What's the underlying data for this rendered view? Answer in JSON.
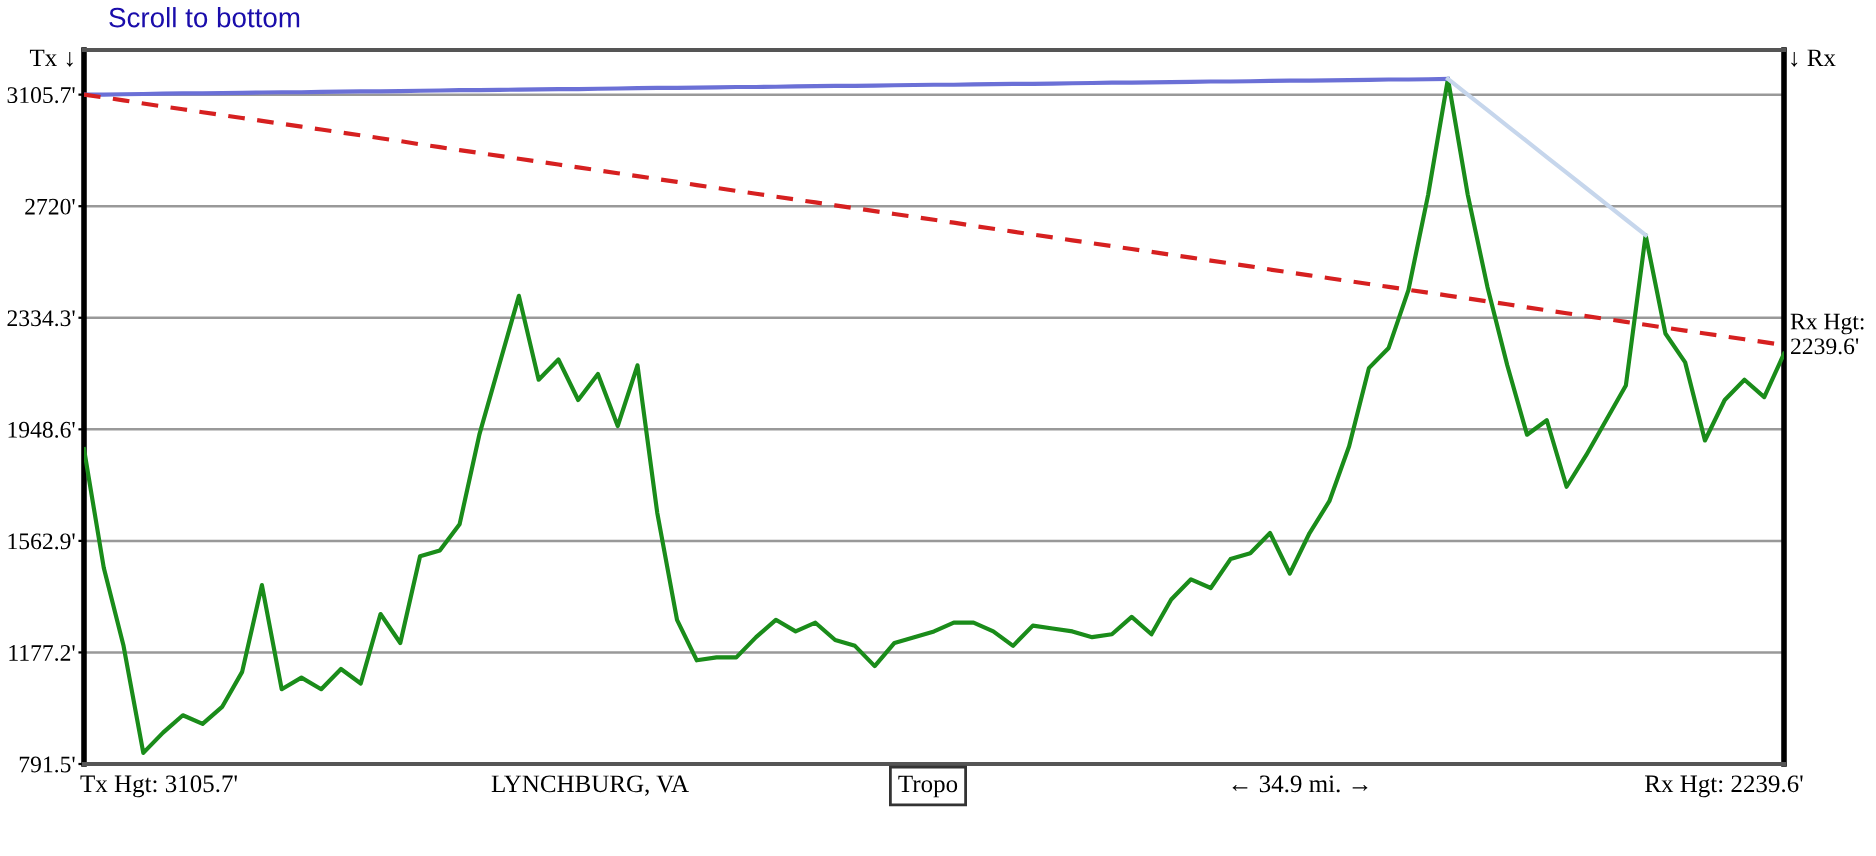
{
  "chart_data": {
    "type": "line",
    "categories": [
      null,
      null,
      null,
      null,
      null,
      null,
      null,
      null,
      null,
      null,
      null,
      null,
      null,
      null,
      null,
      null,
      null,
      null,
      null,
      null,
      null,
      null,
      null,
      null,
      null,
      null,
      null,
      null,
      null,
      null,
      null,
      null,
      null,
      null,
      null,
      null,
      null,
      null,
      null,
      null,
      null,
      null,
      null,
      null,
      null,
      null,
      null,
      null,
      null,
      null,
      null,
      null,
      null,
      null,
      null,
      null,
      null,
      null,
      null,
      null,
      null,
      null,
      null,
      null,
      null,
      null,
      null,
      null,
      null,
      null,
      null,
      null,
      null,
      null,
      null,
      null,
      null,
      null,
      null,
      null,
      null,
      null,
      null,
      null,
      null,
      null,
      null
    ],
    "series": [
      {
        "color": "#1a8c1a",
        "values": [
          1880,
          1470,
          1200,
          830,
          900,
          960,
          930,
          990,
          1110,
          1410,
          1050,
          1090,
          1050,
          1120,
          1070,
          1310,
          1210,
          1510,
          1530,
          1620,
          1930,
          2170,
          2410,
          2120,
          2190,
          2050,
          2140,
          1960,
          2170,
          1660,
          1290,
          1150,
          1160,
          1160,
          1230,
          1290,
          1250,
          1280,
          1220,
          1200,
          1130,
          1210,
          1230,
          1250,
          1280,
          1280,
          1250,
          1200,
          1270,
          1260,
          1250,
          1230,
          1240,
          1300,
          1240,
          1360,
          1430,
          1400,
          1500,
          1520,
          1590,
          1450,
          1590,
          1700,
          1890,
          2160,
          2230,
          2430,
          2760,
          3160,
          2760,
          2440,
          2170,
          1930,
          1980,
          1750,
          1860,
          1980,
          2100,
          2620,
          2280,
          2180,
          1910,
          2050,
          2120,
          2060,
          2210
        ]
      },
      {
        "color": "#6b70d6",
        "values": [
          3105.7,
          3106,
          3107,
          3108,
          3109,
          3110,
          3110,
          3111,
          3112,
          3113,
          3114,
          3114,
          3115,
          3116,
          3117,
          3117,
          3118,
          3119,
          3120,
          3121,
          3121,
          3122,
          3123,
          3124,
          3125,
          3125,
          3126,
          3127,
          3128,
          3129,
          3129,
          3130,
          3131,
          3132,
          3132,
          3133,
          3134,
          3135,
          3136,
          3136,
          3137,
          3138,
          3139,
          3140,
          3140,
          3141,
          3142,
          3143,
          3143,
          3144,
          3145,
          3146,
          3147,
          3147,
          3148,
          3149,
          3150,
          3151,
          3151,
          3152,
          3153,
          3154,
          3154,
          3155,
          3156,
          3157,
          3158,
          3158,
          3159,
          3160,
          null,
          null,
          null,
          null,
          null,
          null,
          null,
          null,
          null,
          null,
          null,
          null,
          null,
          null,
          null,
          null,
          null
        ]
      },
      {
        "color": "#c6d6ec",
        "values": [
          null,
          null,
          null,
          null,
          null,
          null,
          null,
          null,
          null,
          null,
          null,
          null,
          null,
          null,
          null,
          null,
          null,
          null,
          null,
          null,
          null,
          null,
          null,
          null,
          null,
          null,
          null,
          null,
          null,
          null,
          null,
          null,
          null,
          null,
          null,
          null,
          null,
          null,
          null,
          null,
          null,
          null,
          null,
          null,
          null,
          null,
          null,
          null,
          null,
          null,
          null,
          null,
          null,
          null,
          null,
          null,
          null,
          null,
          null,
          null,
          null,
          null,
          null,
          null,
          null,
          null,
          null,
          null,
          null,
          3160,
          3106,
          3052,
          2998,
          2944,
          2890,
          2836,
          2782,
          2728,
          2674,
          2620,
          null,
          null,
          null,
          null,
          null,
          null,
          null
        ]
      },
      {
        "color": "#d62020",
        "line_style": "dashed",
        "values": [
          3105.7,
          3096,
          3086,
          3075,
          3065,
          3055,
          3045,
          3035,
          3025,
          3015,
          3005,
          2995,
          2985,
          2975,
          2965,
          2955,
          2945,
          2934,
          2924,
          2914,
          2904,
          2894,
          2884,
          2874,
          2864,
          2854,
          2844,
          2834,
          2824,
          2814,
          2804,
          2793,
          2783,
          2773,
          2763,
          2753,
          2743,
          2733,
          2723,
          2713,
          2703,
          2693,
          2683,
          2673,
          2663,
          2652,
          2642,
          2632,
          2622,
          2612,
          2602,
          2592,
          2582,
          2572,
          2562,
          2552,
          2542,
          2532,
          2522,
          2512,
          2501,
          2491,
          2481,
          2471,
          2461,
          2451,
          2441,
          2431,
          2421,
          2411,
          2401,
          2391,
          2381,
          2370,
          2360,
          2350,
          2340,
          2330,
          2320,
          2310,
          2300,
          2290,
          2280,
          2270,
          2260,
          2250,
          2239.6
        ]
      }
    ],
    "ylim": [
      791.5,
      3260
    ],
    "yticks": [
      {
        "value": 791.5,
        "label": "791.5'"
      },
      {
        "value": 1177.2,
        "label": "1177.2'"
      },
      {
        "value": 1562.9,
        "label": "1562.9'"
      },
      {
        "value": 1948.6,
        "label": "1948.6'"
      },
      {
        "value": 2334.3,
        "label": "2334.3'"
      },
      {
        "value": 2720,
        "label": "2720'"
      },
      {
        "value": 3105.7,
        "label": "3105.7'"
      }
    ],
    "tick_labels": "y",
    "grid": "y",
    "annotations": [
      "Scroll to bottom",
      "Tx ↓",
      "↓ Rx",
      "Tx Hgt: 3105.7'",
      "LYNCHBURG, VA",
      "Tropo",
      "← 34.9 mi. →",
      "Rx Hgt: 2239.6'",
      "Rx Hgt:\n2239.6'"
    ]
  }
}
